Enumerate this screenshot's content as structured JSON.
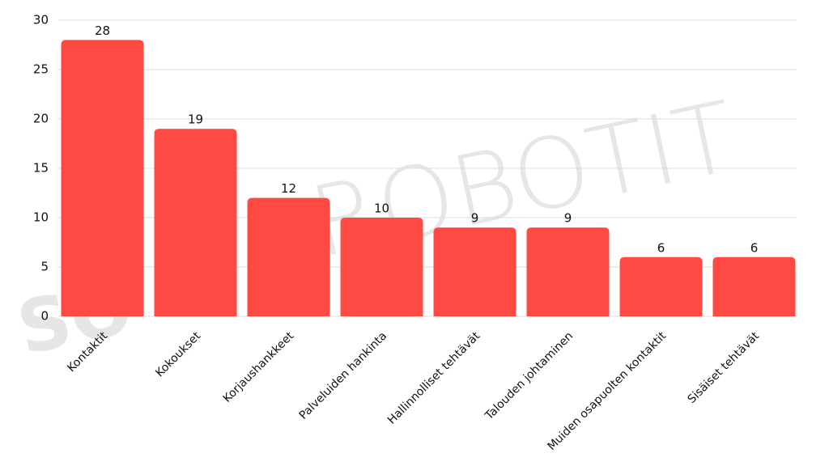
{
  "chart_data": {
    "type": "bar",
    "categories": [
      "Kontaktit",
      "Kokoukset",
      "Korjaushankkeet",
      "Palveluiden hankinta",
      "Hallinnolliset tehtävät",
      "Talouden johtaminen",
      "Muiden osapuolten kontaktit",
      "Sisäiset tehtävät"
    ],
    "values": [
      28,
      19,
      12,
      10,
      9,
      9,
      6,
      6
    ],
    "color": "#ff4a43",
    "ylim": [
      0,
      30
    ],
    "yticks": [
      0,
      5,
      10,
      15,
      20,
      25,
      30
    ],
    "grid": true,
    "watermark": [
      "SO",
      "ROBOTIT"
    ]
  }
}
